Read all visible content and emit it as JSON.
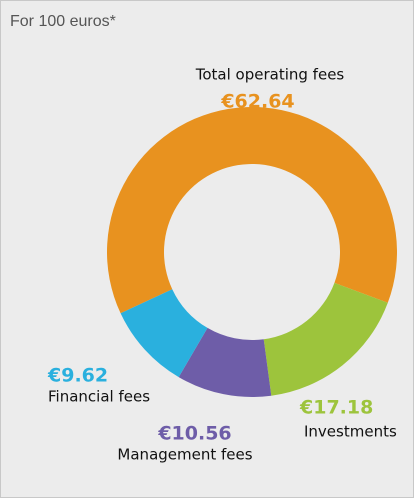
{
  "chart_data": {
    "type": "pie",
    "donut": true,
    "title": "For 100 euros*",
    "categories": [
      "Total operating fees",
      "Investments",
      "Management fees",
      "Financial fees"
    ],
    "values": [
      62.64,
      17.18,
      10.56,
      9.62
    ],
    "value_labels": [
      "€62.64",
      "€17.18",
      "€10.56",
      "€9.62"
    ],
    "colors": [
      "#e8921f",
      "#9dc43c",
      "#6e5da8",
      "#2ab0de"
    ]
  }
}
